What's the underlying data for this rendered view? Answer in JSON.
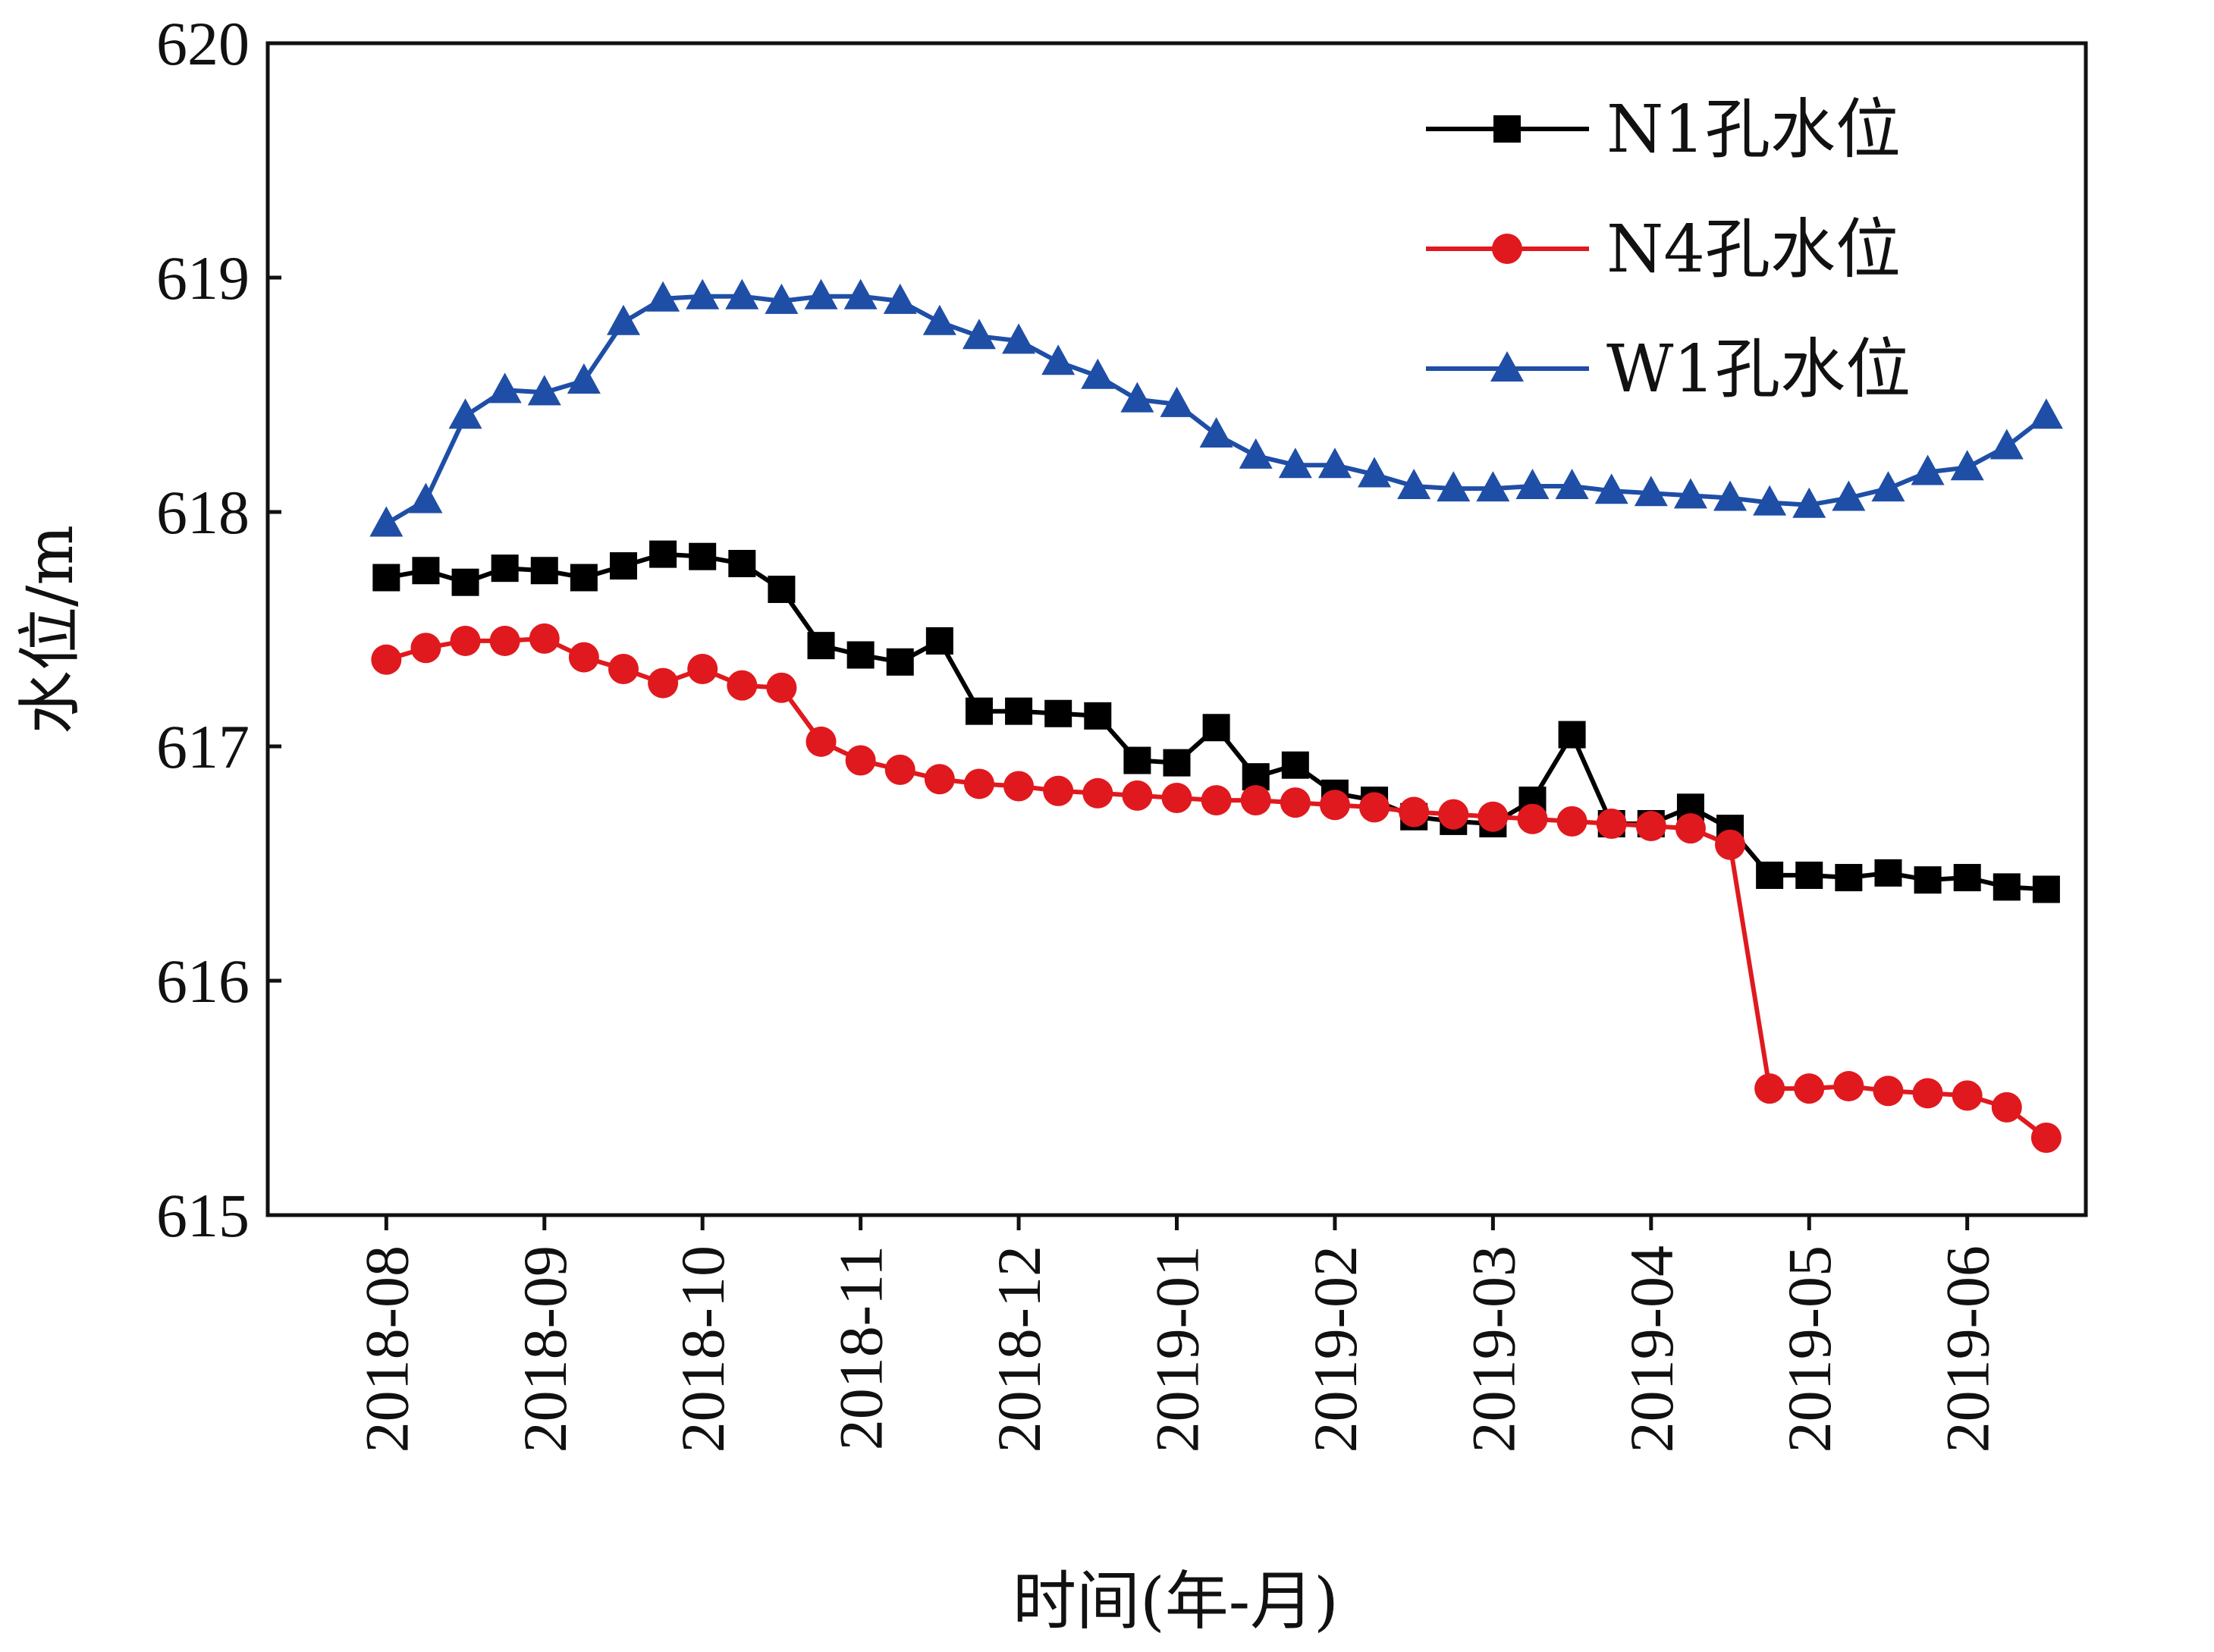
{
  "chart_data": {
    "type": "line",
    "xlabel": "时间(年-月)",
    "ylabel": "水位/m",
    "ylim": [
      615,
      620
    ],
    "yticks": [
      "615",
      "616",
      "617",
      "618",
      "619",
      "620"
    ],
    "categories": [
      "2018-08",
      "2018-09",
      "2018-10",
      "2018-11",
      "2018-12",
      "2019-01",
      "2019-02",
      "2019-03",
      "2019-04",
      "2019-05",
      "2019-06"
    ],
    "x_unit": "month index from 2018-08",
    "xlim": [
      -0.75,
      10.75
    ],
    "grid": false,
    "legend_position": "top-right",
    "series": [
      {
        "name": "N1孔水位",
        "color": "#000000",
        "marker": "square",
        "x": [
          0,
          0.25,
          0.5,
          0.75,
          1,
          1.25,
          1.5,
          1.75,
          2,
          2.25,
          2.5,
          2.75,
          3,
          3.25,
          3.5,
          3.75,
          4,
          4.25,
          4.5,
          4.75,
          5,
          5.25,
          5.5,
          5.75,
          6,
          6.25,
          6.5,
          6.75,
          7,
          7.25,
          7.5,
          7.75,
          8,
          8.25,
          8.5,
          8.75,
          9,
          9.25,
          9.5,
          9.75,
          10,
          10.25,
          10.5
        ],
        "values": [
          617.72,
          617.75,
          617.7,
          617.76,
          617.75,
          617.72,
          617.77,
          617.82,
          617.81,
          617.78,
          617.67,
          617.43,
          617.39,
          617.36,
          617.45,
          617.15,
          617.15,
          617.14,
          617.13,
          616.94,
          616.93,
          617.08,
          616.87,
          616.92,
          616.8,
          616.77,
          616.7,
          616.68,
          616.67,
          616.77,
          617.05,
          616.67,
          616.67,
          616.74,
          616.65,
          616.45,
          616.45,
          616.44,
          616.46,
          616.43,
          616.44,
          616.4,
          616.39
        ]
      },
      {
        "name": "N4孔水位",
        "color": "#e0191e",
        "marker": "circle",
        "x": [
          0,
          0.25,
          0.5,
          0.75,
          1,
          1.25,
          1.5,
          1.75,
          2,
          2.25,
          2.5,
          2.75,
          3,
          3.25,
          3.5,
          3.75,
          4,
          4.25,
          4.5,
          4.75,
          5,
          5.25,
          5.5,
          5.75,
          6,
          6.25,
          6.5,
          6.75,
          7,
          7.25,
          7.5,
          7.75,
          8,
          8.25,
          8.5,
          8.75,
          9,
          9.25,
          9.5,
          9.75,
          10,
          10.25,
          10.5
        ],
        "values": [
          617.37,
          617.42,
          617.45,
          617.45,
          617.46,
          617.38,
          617.33,
          617.27,
          617.33,
          617.26,
          617.25,
          617.02,
          616.94,
          616.9,
          616.86,
          616.84,
          616.83,
          616.81,
          616.8,
          616.79,
          616.78,
          616.77,
          616.77,
          616.76,
          616.75,
          616.74,
          616.72,
          616.71,
          616.7,
          616.69,
          616.68,
          616.67,
          616.66,
          616.65,
          616.58,
          615.54,
          615.54,
          615.55,
          615.53,
          615.52,
          615.51,
          615.46,
          615.33
        ]
      },
      {
        "name": "W1孔水位",
        "color": "#1f4ea6",
        "marker": "triangle",
        "x": [
          0,
          0.25,
          0.5,
          0.75,
          1,
          1.25,
          1.5,
          1.75,
          2,
          2.25,
          2.5,
          2.75,
          3,
          3.25,
          3.5,
          3.75,
          4,
          4.25,
          4.5,
          4.75,
          5,
          5.25,
          5.5,
          5.75,
          6,
          6.25,
          6.5,
          6.75,
          7,
          7.25,
          7.5,
          7.75,
          8,
          8.25,
          8.5,
          8.75,
          9,
          9.25,
          9.5,
          9.75,
          10,
          10.25,
          10.5
        ],
        "values": [
          617.95,
          618.05,
          618.41,
          618.52,
          618.51,
          618.56,
          618.81,
          618.91,
          618.92,
          618.92,
          618.9,
          618.92,
          618.92,
          618.9,
          618.81,
          618.75,
          618.73,
          618.64,
          618.58,
          618.48,
          618.46,
          618.33,
          618.24,
          618.2,
          618.2,
          618.16,
          618.11,
          618.1,
          618.1,
          618.11,
          618.11,
          618.09,
          618.08,
          618.07,
          618.06,
          618.04,
          618.03,
          618.06,
          618.1,
          618.17,
          618.19,
          618.28,
          618.41
        ]
      }
    ]
  }
}
